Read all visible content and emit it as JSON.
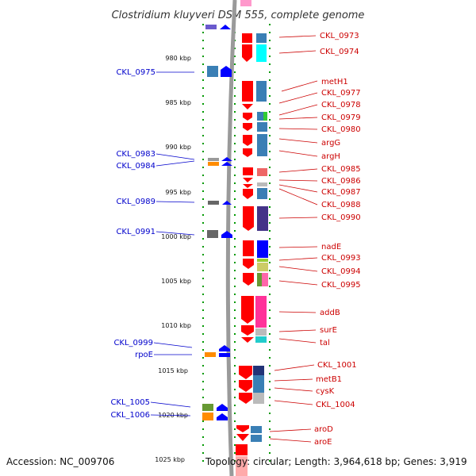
{
  "title": "Clostridium kluyveri DSM 555, complete genome",
  "footer": {
    "accession": "Accession: NC_009706",
    "topology": "Topology: circular; Length: 3,964,618 bp; Genes: 3,919"
  },
  "kbp_ticks": [
    "980 kbp",
    "985 kbp",
    "990 kbp",
    "995 kbp",
    "1000 kbp",
    "1005 kbp",
    "1010 kbp",
    "1015 kbp",
    "1020 kbp",
    "1025 kbp"
  ],
  "right_labels": [
    "CKL_0973",
    "CKL_0974",
    "metH1",
    "CKL_0977",
    "CKL_0978",
    "CKL_0979",
    "CKL_0980",
    "argG",
    "argH",
    "CKL_0985",
    "CKL_0986",
    "CKL_0987",
    "CKL_0988",
    "CKL_0990",
    "nadE",
    "CKL_0993",
    "CKL_0994",
    "CKL_0995",
    "addB",
    "surE",
    "tal",
    "CKL_1001",
    "metB1",
    "cysK",
    "CKL_1004",
    "aroD",
    "aroE"
  ],
  "left_labels": [
    "CKL_0975",
    "CKL_0983",
    "CKL_0984",
    "CKL_0989",
    "CKL_0991",
    "CKL_0999",
    "rpoE",
    "CKL_1005",
    "CKL_1006"
  ],
  "colors": {
    "right_label": "#cc0000",
    "left_label": "#0000cc",
    "forward_strand": "#0000ff",
    "reverse_strand": "#ff0000",
    "tick": "#009900",
    "backbone": "#888888"
  }
}
